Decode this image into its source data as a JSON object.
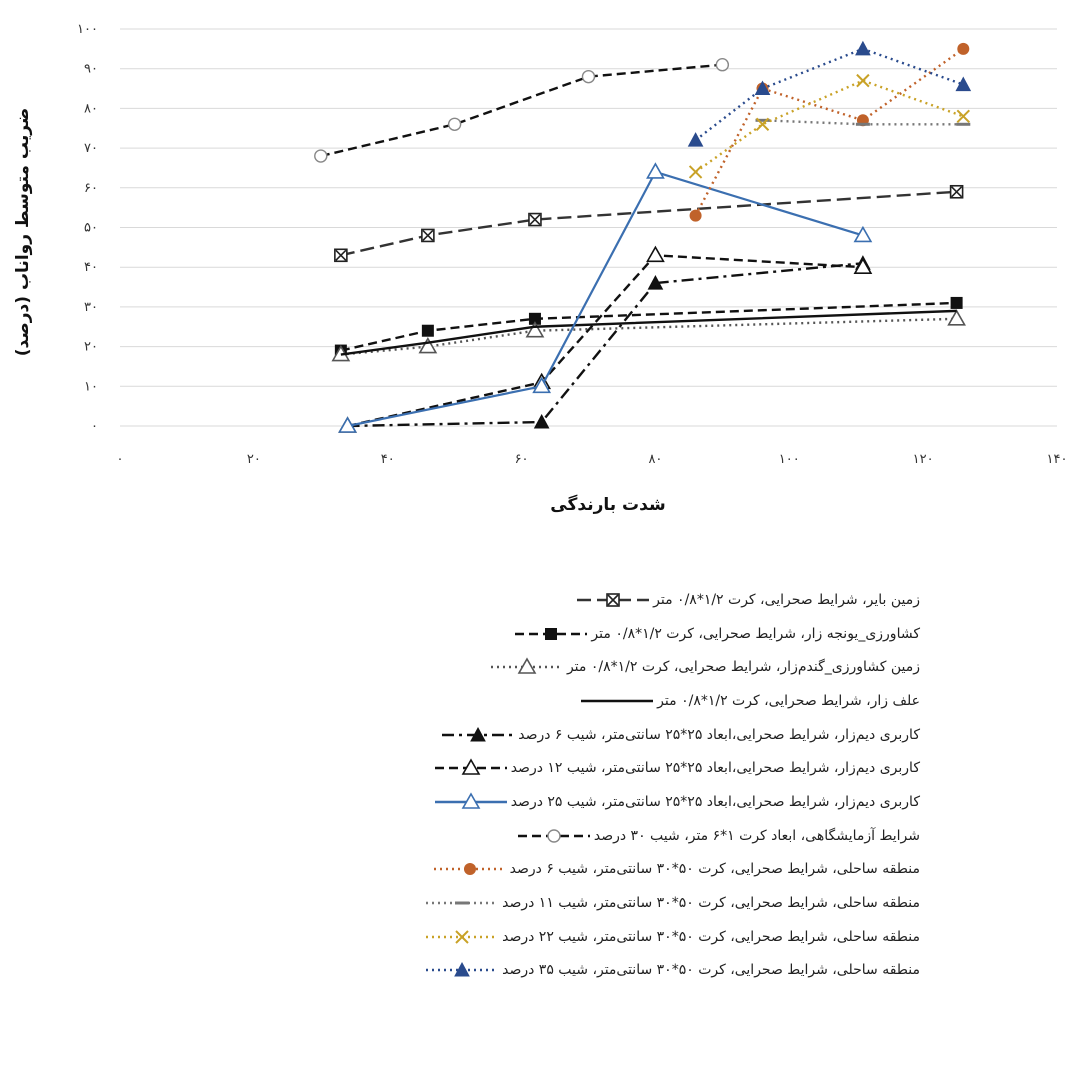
{
  "chart_data": {
    "type": "line",
    "xlabel": "شدت بارندگی",
    "ylabel": "ضریب متوسط رواناب (درصد)",
    "xlim": [
      0,
      140
    ],
    "ylim": [
      0,
      100
    ],
    "xticks": [
      0,
      20,
      40,
      60,
      80,
      100,
      120,
      140
    ],
    "yticks": [
      0,
      10,
      20,
      30,
      40,
      50,
      60,
      70,
      80,
      90,
      100
    ],
    "xtick_labels": [
      "۰",
      "۲۰",
      "۴۰",
      "۶۰",
      "۸۰",
      "۱۰۰",
      "۱۲۰",
      "۱۴۰"
    ],
    "ytick_labels": [
      "۰",
      "۱۰",
      "۲۰",
      "۳۰",
      "۴۰",
      "۵۰",
      "۶۰",
      "۷۰",
      "۸۰",
      "۹۰",
      "۱۰۰"
    ],
    "grid": "horizontal",
    "legend_position": "bottom",
    "series": [
      {
        "name": "زمین بایر، شرایط صحرایی، کرت ۱/۲*۰/۸ متر",
        "color": "#333333",
        "dash": "longdash",
        "marker": "boxx",
        "x": [
          33,
          46,
          62,
          125
        ],
        "y": [
          43,
          48,
          52,
          59
        ]
      },
      {
        "name": "کشاورزی_یونجه زار، شرایط صحرایی، کرت ۱/۲*۰/۸ متر",
        "color": "#111111",
        "dash": "dash",
        "marker": "square",
        "x": [
          33,
          46,
          62,
          125
        ],
        "y": [
          19,
          24,
          27,
          31
        ]
      },
      {
        "name": "زمین کشاورزی_گندم‌زار، شرایط صحرایی، کرت ۱/۲*۰/۸ متر",
        "color": "#555555",
        "dash": "dot",
        "marker": "triangle-open",
        "x": [
          33,
          46,
          62,
          125
        ],
        "y": [
          18,
          20,
          24,
          27
        ]
      },
      {
        "name": "علف زار، شرایط صحرایی، کرت ۱/۲*۰/۸ متر",
        "color": "#111111",
        "dash": "solid",
        "marker": "none",
        "x": [
          33,
          46,
          62,
          125
        ],
        "y": [
          18,
          21,
          25,
          29
        ]
      },
      {
        "name": "کاربری دیم‌زار، شرایط صحرایی،ابعاد ۲۵*۲۵ سانتی‌متر، شیب ۶ درصد",
        "color": "#111111",
        "dash": "dashdot",
        "marker": "triangle-filled",
        "x": [
          34,
          63,
          80,
          111
        ],
        "y": [
          0,
          1,
          36,
          41
        ]
      },
      {
        "name": "کاربری دیم‌زار، شرایط صحرایی،ابعاد ۲۵*۲۵ سانتی‌متر، شیب ۱۲ درصد",
        "color": "#111111",
        "dash": "dash",
        "marker": "triangle-open",
        "x": [
          34,
          63,
          80,
          111
        ],
        "y": [
          0,
          11,
          43,
          40
        ]
      },
      {
        "name": "کاربری دیم‌زار، شرایط صحرایی،ابعاد ۲۵*۲۵ سانتی‌متر، شیب ۲۵ درصد",
        "color": "#3b6fb0",
        "dash": "solid",
        "marker": "triangle-open",
        "x": [
          34,
          63,
          80,
          111
        ],
        "y": [
          0,
          10,
          64,
          48
        ]
      },
      {
        "name": "شرایط آزمایشگاهی، ابعاد کرت ۱*۶ متر، شیب ۳۰ درصد",
        "color": "#111111",
        "dash": "dash",
        "marker": "circle-open",
        "x": [
          30,
          50,
          70,
          90
        ],
        "y": [
          68,
          76,
          88,
          91
        ]
      },
      {
        "name": "منطقه ساحلی، شرایط صحرایی، کرت ۵۰*۳۰ سانتی‌متر، شیب ۶ درصد",
        "color": "#c0622a",
        "dash": "dot",
        "marker": "circle-filled",
        "x": [
          86,
          96,
          111,
          126
        ],
        "y": [
          53,
          85,
          77,
          95
        ]
      },
      {
        "name": "منطقه ساحلی، شرایط صحرایی، کرت ۵۰*۳۰ سانتی‌متر، شیب ۱۱ درصد",
        "color": "#777777",
        "dash": "dot",
        "marker": "dash",
        "x": [
          96,
          111,
          126
        ],
        "y": [
          77,
          76,
          76
        ]
      },
      {
        "name": "منطقه ساحلی، شرایط صحرایی، کرت ۵۰*۳۰ سانتی‌متر، شیب ۲۲ درصد",
        "color": "#c9a227",
        "dash": "dot",
        "marker": "x",
        "x": [
          86,
          96,
          111,
          126
        ],
        "y": [
          64,
          76,
          87,
          78
        ]
      },
      {
        "name": "منطقه ساحلی، شرایط صحرایی، کرت ۵۰*۳۰ سانتی‌متر، شیب ۳۵ درصد",
        "color": "#2a4b8d",
        "dash": "dot",
        "marker": "triangle-filled",
        "x": [
          86,
          96,
          111,
          126
        ],
        "y": [
          72,
          85,
          95,
          86
        ]
      }
    ]
  }
}
